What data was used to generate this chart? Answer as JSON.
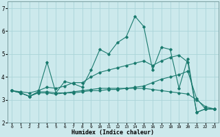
{
  "xlabel": "Humidex (Indice chaleur)",
  "ylabel": "",
  "background_color": "#cce9ec",
  "grid_color": "#aad4d8",
  "line_color": "#1a7a6e",
  "xlim": [
    -0.5,
    23.5
  ],
  "ylim": [
    2.0,
    7.3
  ],
  "yticks": [
    2,
    3,
    4,
    5,
    6,
    7
  ],
  "xticks": [
    0,
    1,
    2,
    3,
    4,
    5,
    6,
    7,
    8,
    9,
    10,
    11,
    12,
    13,
    14,
    15,
    16,
    17,
    18,
    19,
    20,
    21,
    22,
    23
  ],
  "series": [
    [
      3.4,
      3.3,
      3.15,
      3.35,
      4.65,
      3.3,
      3.8,
      3.7,
      3.55,
      4.3,
      5.2,
      5.0,
      5.5,
      5.75,
      6.65,
      6.2,
      4.3,
      5.3,
      5.2,
      3.5,
      4.8,
      2.45,
      2.6,
      2.6
    ],
    [
      3.4,
      3.3,
      3.15,
      3.35,
      3.35,
      3.3,
      3.3,
      3.3,
      3.35,
      3.4,
      3.4,
      3.45,
      3.45,
      3.5,
      3.55,
      3.6,
      3.75,
      3.9,
      4.0,
      4.1,
      4.25,
      3.05,
      2.6,
      2.6
    ],
    [
      3.4,
      3.3,
      3.15,
      3.3,
      3.3,
      3.25,
      3.3,
      3.35,
      3.4,
      3.45,
      3.5,
      3.5,
      3.5,
      3.5,
      3.5,
      3.5,
      3.45,
      3.4,
      3.35,
      3.3,
      3.25,
      3.0,
      2.7,
      2.6
    ],
    [
      3.4,
      3.35,
      3.3,
      3.4,
      3.55,
      3.5,
      3.6,
      3.75,
      3.75,
      4.0,
      4.2,
      4.3,
      4.4,
      4.5,
      4.6,
      4.7,
      4.5,
      4.7,
      4.85,
      4.95,
      4.65,
      2.45,
      2.6,
      2.6
    ]
  ]
}
